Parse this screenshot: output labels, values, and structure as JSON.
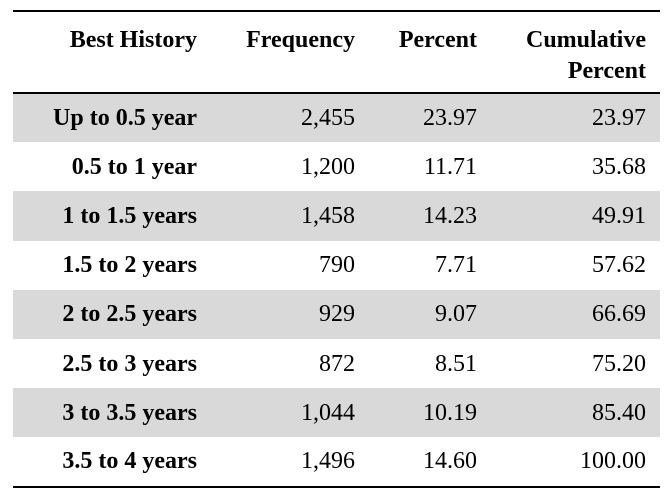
{
  "table": {
    "headers": [
      "Best History",
      "Frequency",
      "Percent",
      "Cumulative Percent"
    ],
    "rows": [
      [
        "Up to 0.5 year",
        "2,455",
        "23.97",
        "23.97"
      ],
      [
        "0.5 to 1 year",
        "1,200",
        "11.71",
        "35.68"
      ],
      [
        "1 to 1.5 years",
        "1,458",
        "14.23",
        "49.91"
      ],
      [
        "1.5 to 2 years",
        "790",
        "7.71",
        "57.62"
      ],
      [
        "2 to 2.5 years",
        "929",
        "9.07",
        "66.69"
      ],
      [
        "2.5 to 3 years",
        "872",
        "8.51",
        "75.20"
      ],
      [
        "3 to 3.5 years",
        "1,044",
        "10.19",
        "85.40"
      ],
      [
        "3.5 to 4 years",
        "1,496",
        "14.60",
        "100.00"
      ]
    ]
  }
}
